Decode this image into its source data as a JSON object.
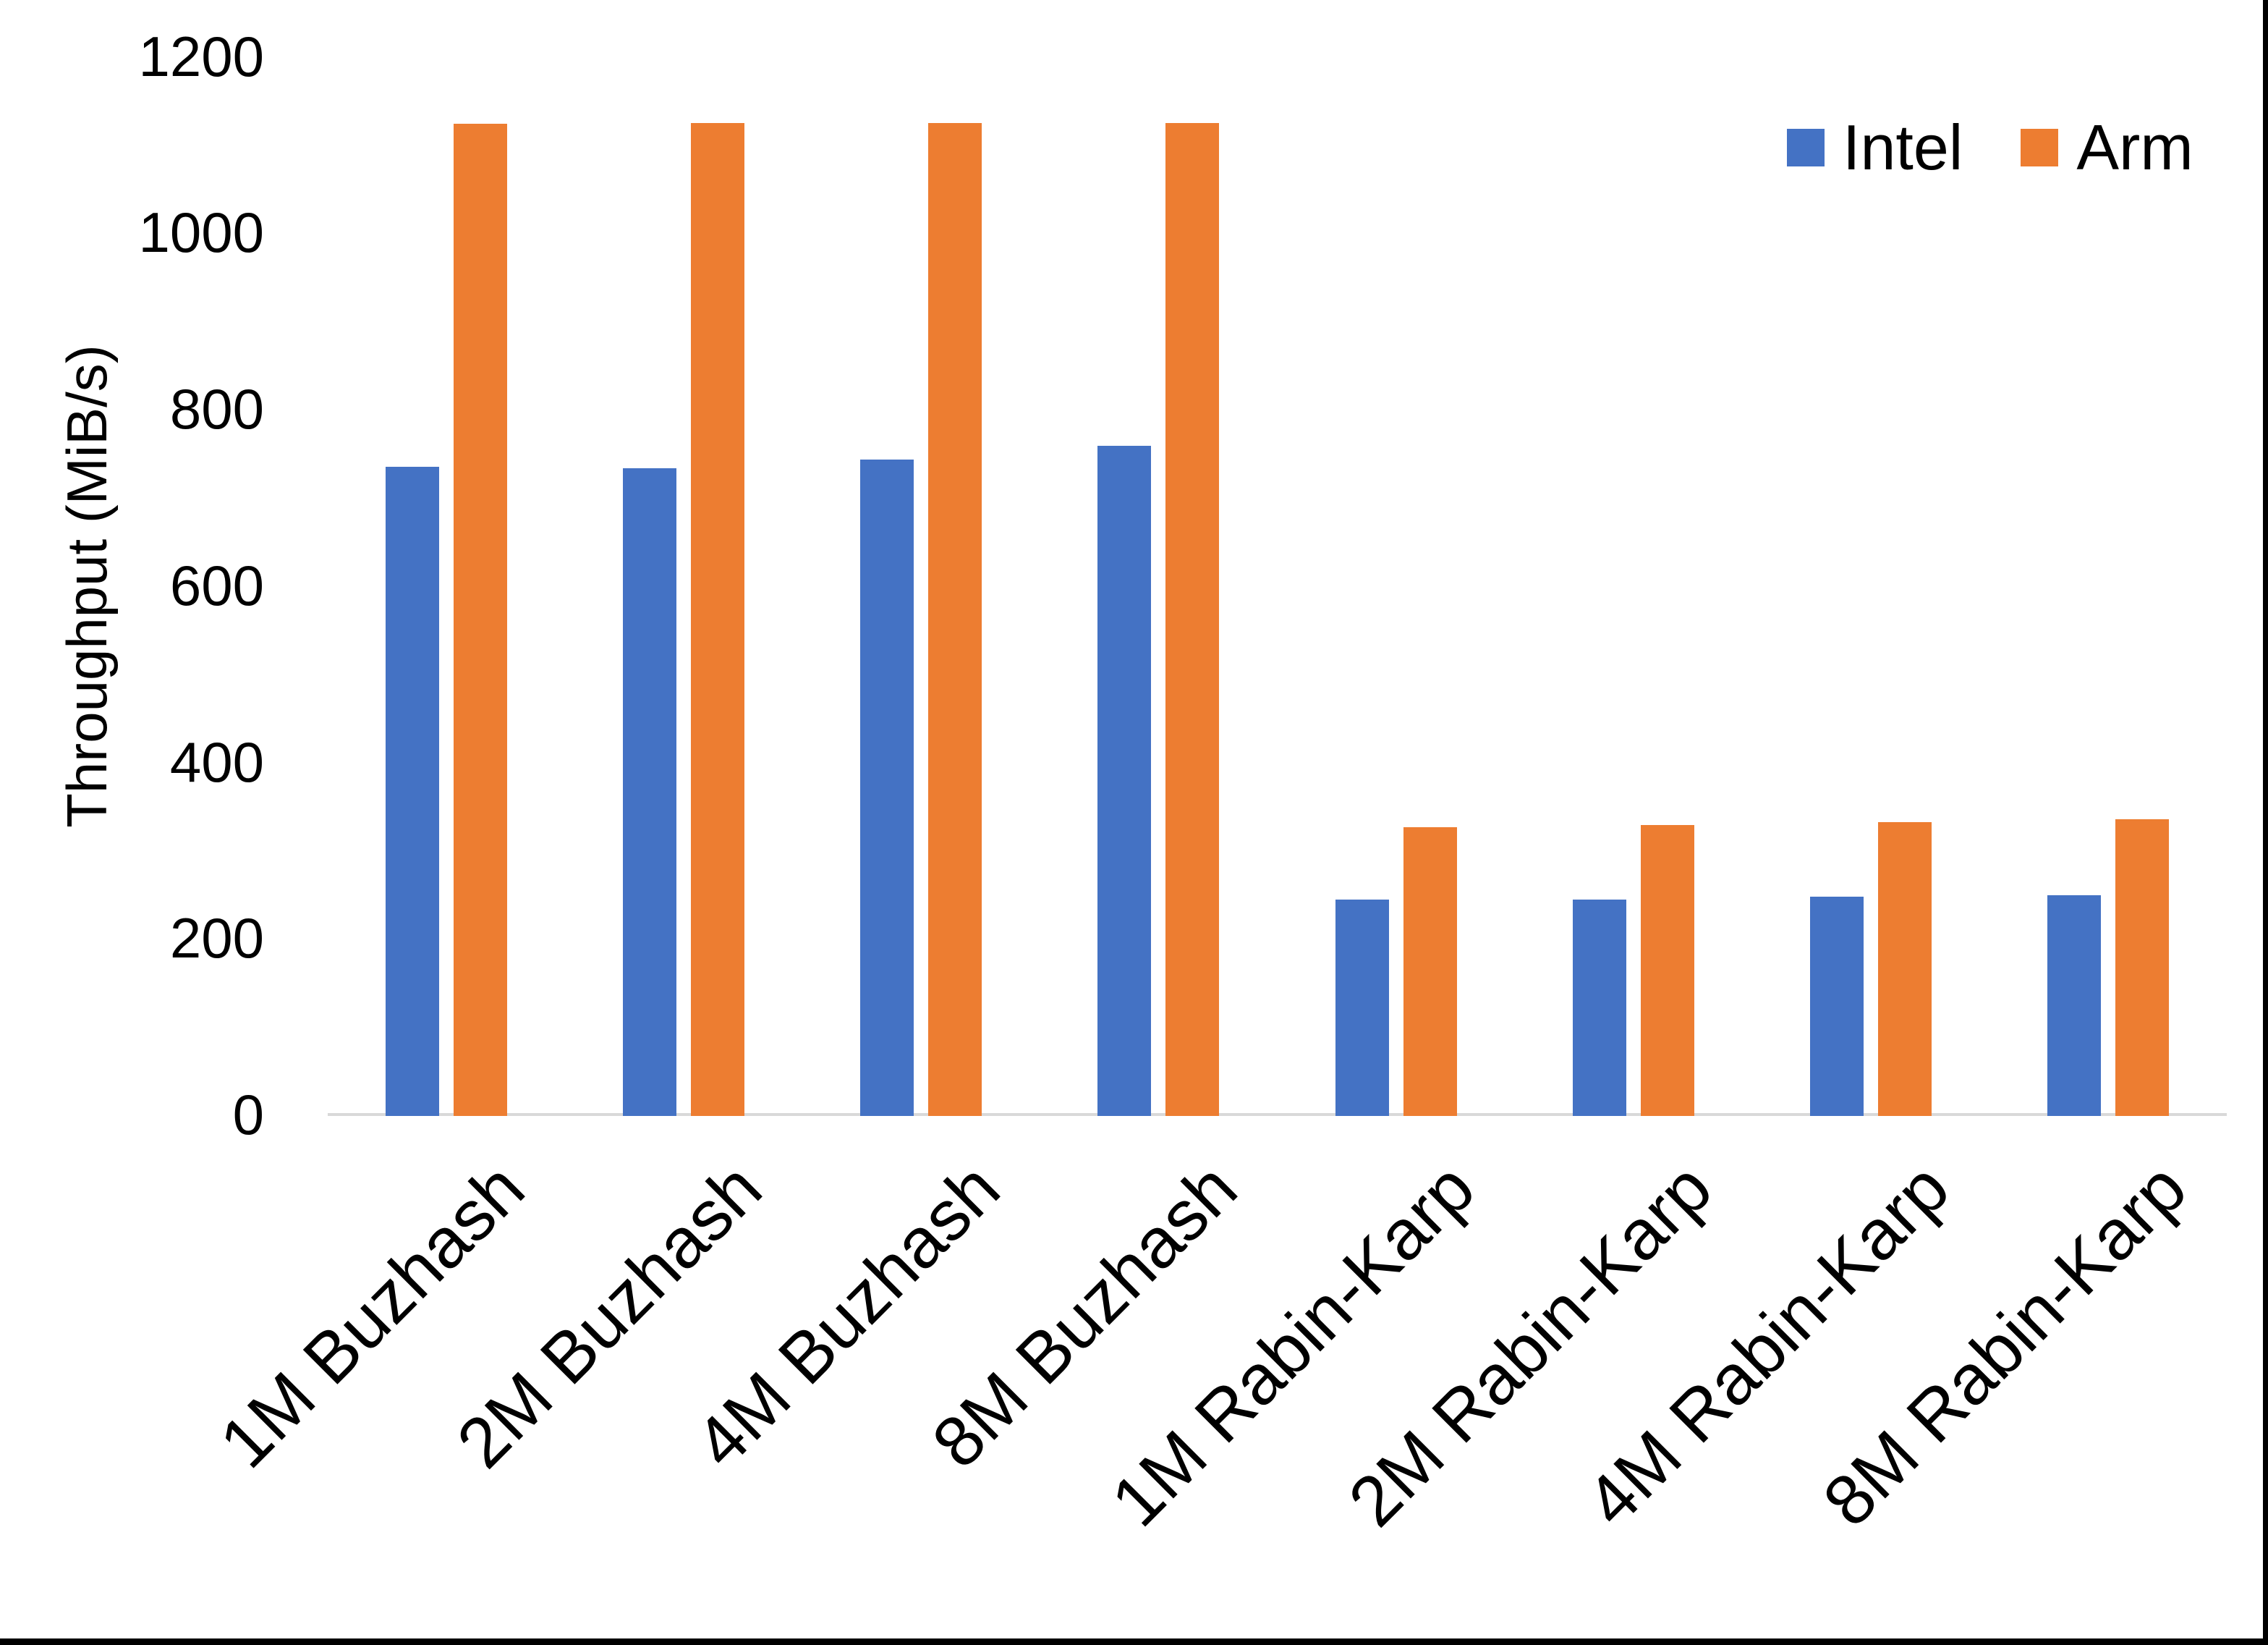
{
  "chart_data": {
    "type": "bar",
    "title": "",
    "ylabel": "Throughput (MiB/s)",
    "categories": [
      "1M Buzhash",
      "2M Buzhash",
      "4M Buzhash",
      "8M Buzhash",
      "1M Rabin-Karp",
      "2M Rabin-Karp",
      "4M Rabin-Karp",
      "8M Rabin-Karp"
    ],
    "series": [
      {
        "name": "Intel",
        "color": "#4472C4",
        "values": [
          736,
          734,
          744,
          760,
          245,
          245,
          249,
          250
        ]
      },
      {
        "name": "Arm",
        "color": "#ED7D31",
        "values": [
          1125,
          1126,
          1126,
          1126,
          327,
          330,
          333,
          336
        ]
      }
    ],
    "ylim": [
      0,
      1200
    ],
    "yticks": [
      0,
      200,
      400,
      600,
      800,
      1000,
      1200
    ],
    "grid": false,
    "legend_position": "top-right",
    "colors": {
      "axis_line": "#D9D9D9",
      "text": "#000000",
      "background": "#FFFFFF",
      "frame_border": "#000000"
    }
  }
}
